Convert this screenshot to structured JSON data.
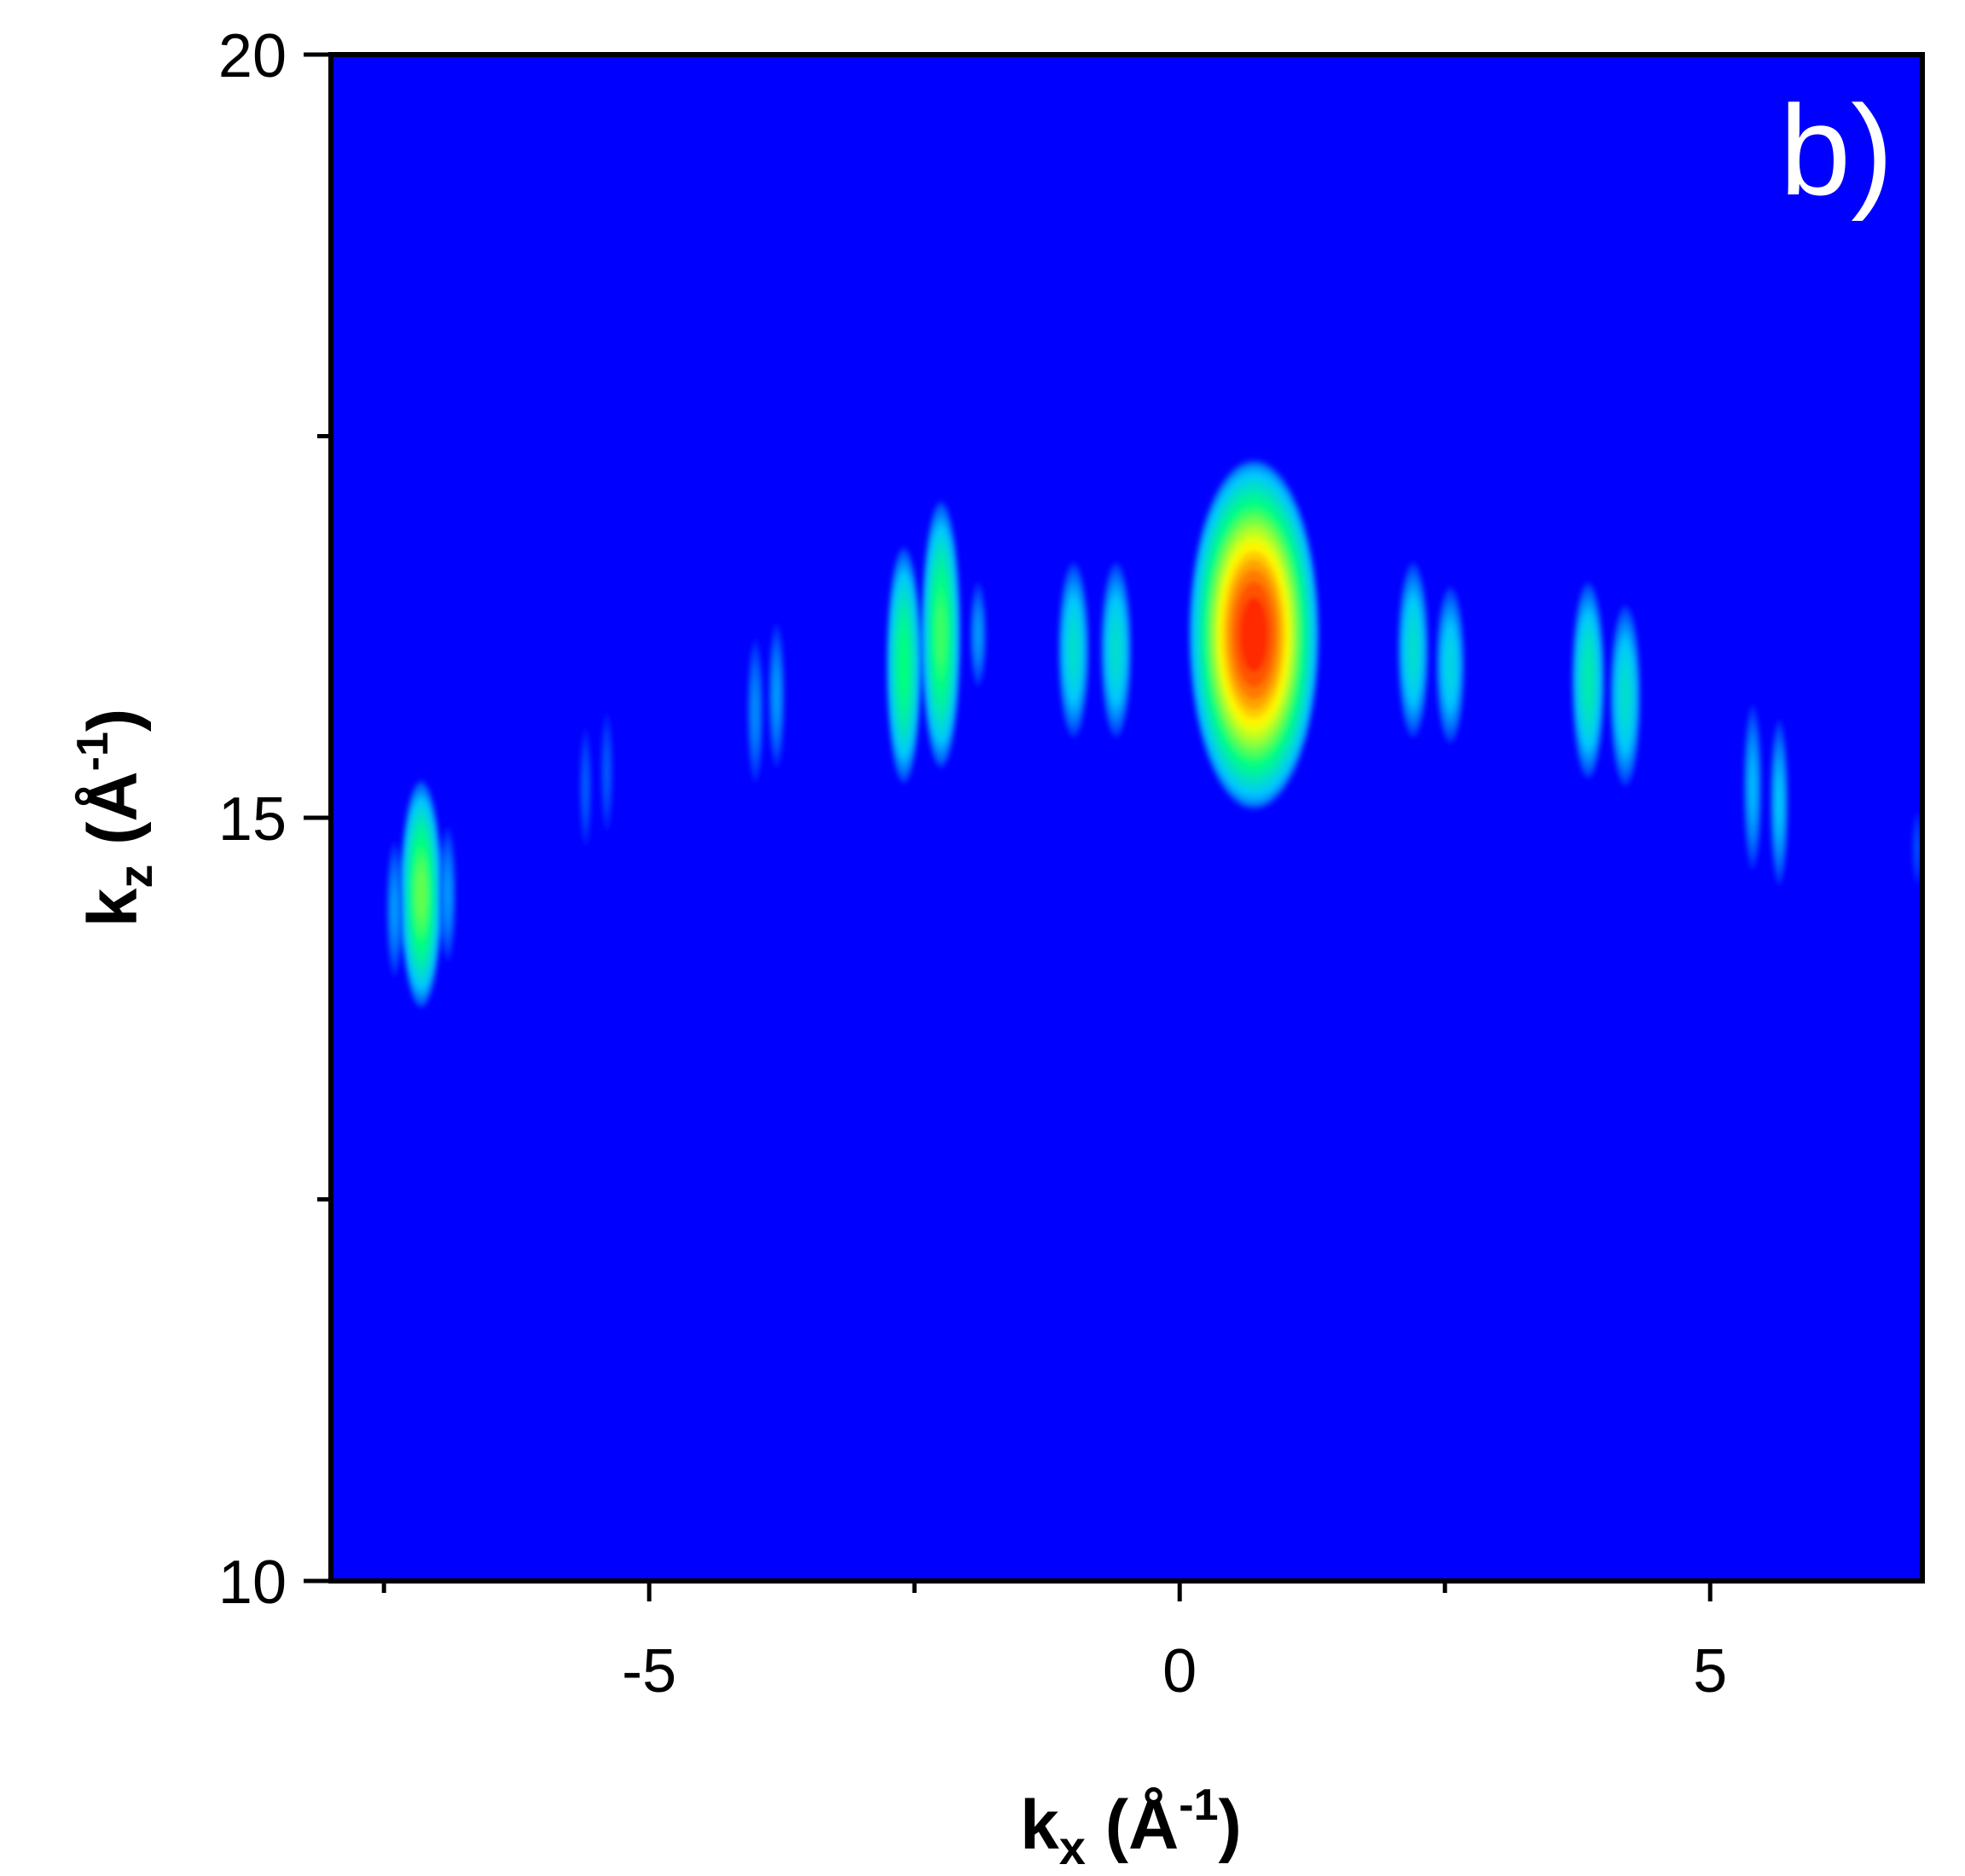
{
  "chart_data": {
    "type": "heatmap",
    "panel_label": "b)",
    "xlabel": {
      "base": "k",
      "sub": "x",
      "unit_pre": " (Å",
      "sup": "-1",
      "unit_post": ")"
    },
    "ylabel": {
      "base": "k",
      "sub": "z",
      "unit_pre": " (Å",
      "sup": "-1",
      "unit_post": ")"
    },
    "xlim": [
      -8,
      7
    ],
    "ylim": [
      10,
      20
    ],
    "x_ticks": [
      {
        "value": -5,
        "label": "-5"
      },
      {
        "value": 0,
        "label": "0"
      },
      {
        "value": 5,
        "label": "5"
      }
    ],
    "x_minor_ticks": [
      -7.5,
      -2.5,
      2.5
    ],
    "y_ticks": [
      {
        "value": 10,
        "label": "10"
      },
      {
        "value": 15,
        "label": "15"
      },
      {
        "value": 20,
        "label": "20"
      }
    ],
    "y_minor_ticks": [
      12.5,
      17.5
    ],
    "grid": false,
    "legend": "none",
    "colormap": [
      "#0000ff",
      "#00c8ff",
      "#00ff80",
      "#ffff00",
      "#ff0000"
    ],
    "background_color": "#0000ff",
    "peaks": [
      {
        "x": 0.7,
        "y": 16.2,
        "sx": 0.62,
        "sy": 1.15,
        "intensity": 1.0
      },
      {
        "x": -2.6,
        "y": 16.0,
        "sx": 0.17,
        "sy": 0.78,
        "intensity": 0.52
      },
      {
        "x": -2.25,
        "y": 16.2,
        "sx": 0.19,
        "sy": 0.88,
        "intensity": 0.58
      },
      {
        "x": -1.9,
        "y": 16.2,
        "sx": 0.08,
        "sy": 0.35,
        "intensity": 0.2
      },
      {
        "x": -1.0,
        "y": 16.1,
        "sx": 0.15,
        "sy": 0.58,
        "intensity": 0.36
      },
      {
        "x": -0.6,
        "y": 16.1,
        "sx": 0.15,
        "sy": 0.58,
        "intensity": 0.36
      },
      {
        "x": 2.2,
        "y": 16.1,
        "sx": 0.15,
        "sy": 0.58,
        "intensity": 0.36
      },
      {
        "x": 2.55,
        "y": 16.0,
        "sx": 0.14,
        "sy": 0.52,
        "intensity": 0.32
      },
      {
        "x": 3.85,
        "y": 15.9,
        "sx": 0.16,
        "sy": 0.65,
        "intensity": 0.42
      },
      {
        "x": 4.2,
        "y": 15.8,
        "sx": 0.15,
        "sy": 0.6,
        "intensity": 0.36
      },
      {
        "x": -4.0,
        "y": 15.7,
        "sx": 0.08,
        "sy": 0.48,
        "intensity": 0.18
      },
      {
        "x": -3.8,
        "y": 15.8,
        "sx": 0.08,
        "sy": 0.48,
        "intensity": 0.2
      },
      {
        "x": -5.6,
        "y": 15.2,
        "sx": 0.06,
        "sy": 0.4,
        "intensity": 0.12
      },
      {
        "x": -5.4,
        "y": 15.3,
        "sx": 0.06,
        "sy": 0.4,
        "intensity": 0.12
      },
      {
        "x": 5.4,
        "y": 15.2,
        "sx": 0.09,
        "sy": 0.55,
        "intensity": 0.24
      },
      {
        "x": 5.65,
        "y": 15.1,
        "sx": 0.09,
        "sy": 0.55,
        "intensity": 0.26
      },
      {
        "x": -7.15,
        "y": 14.5,
        "sx": 0.2,
        "sy": 0.75,
        "intensity": 0.62
      },
      {
        "x": -7.4,
        "y": 14.4,
        "sx": 0.08,
        "sy": 0.45,
        "intensity": 0.2
      },
      {
        "x": -6.9,
        "y": 14.5,
        "sx": 0.08,
        "sy": 0.45,
        "intensity": 0.2
      },
      {
        "x": 6.95,
        "y": 14.8,
        "sx": 0.05,
        "sy": 0.25,
        "intensity": 0.1
      }
    ]
  }
}
